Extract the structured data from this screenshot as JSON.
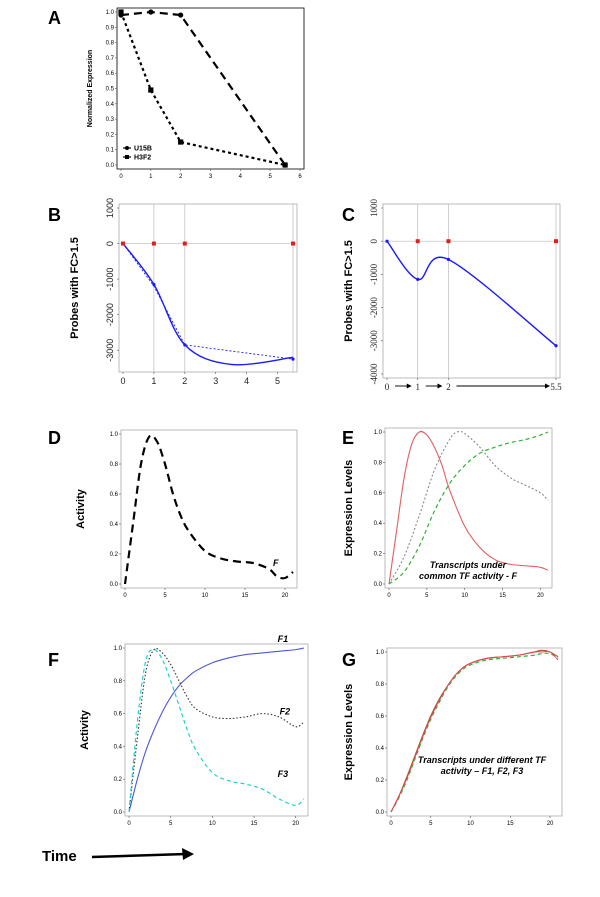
{
  "panels": {
    "A": {
      "letter": "A"
    },
    "B": {
      "letter": "B"
    },
    "C": {
      "letter": "C"
    },
    "D": {
      "letter": "D"
    },
    "E": {
      "letter": "E"
    },
    "F": {
      "letter": "F"
    },
    "G": {
      "letter": "G"
    }
  },
  "time_label": "Time",
  "colors": {
    "blue": "#1a1aff",
    "red": "#e02020",
    "cyan": "#20d0d0",
    "green": "#30b030",
    "gray": "#888888",
    "salmon": "#e06060",
    "pink": "#f04060"
  },
  "chart_data": [
    {
      "id": "A",
      "type": "line",
      "ylabel": "Normalized Expression",
      "xlabel": "",
      "xlim": [
        0,
        6
      ],
      "ylim": [
        0,
        1.0
      ],
      "xticks": [
        "0",
        "1",
        "2",
        "3",
        "4",
        "5",
        "6"
      ],
      "yticks": [
        "0.0",
        "0.1",
        "0.2",
        "0.3",
        "0.4",
        "0.5",
        "0.6",
        "0.7",
        "0.8",
        "0.9",
        "1.0"
      ],
      "legend_position": "bottom-left",
      "series": [
        {
          "name": "U15B",
          "marker": "circle",
          "style": "dashed",
          "x": [
            0,
            1,
            2,
            5.5
          ],
          "y": [
            0.98,
            1.0,
            0.98,
            0.0
          ]
        },
        {
          "name": "H3F2",
          "marker": "square",
          "style": "dotted",
          "x": [
            0,
            1,
            2,
            5.5
          ],
          "y": [
            1.0,
            0.49,
            0.15,
            0.0
          ]
        }
      ]
    },
    {
      "id": "B",
      "type": "line",
      "ylabel": "Probes with FC>1.5",
      "xlabel": "",
      "xlim": [
        0,
        5.5
      ],
      "ylim": [
        -3500,
        1000
      ],
      "xticks": [
        "0",
        "1",
        "2",
        "3",
        "4",
        "5"
      ],
      "yticks": [
        "1000",
        "0",
        "-1000",
        "-2000",
        "-3000"
      ],
      "series": [
        {
          "style": "smooth",
          "x": [
            0,
            1,
            2,
            3.5,
            5.5
          ],
          "y": [
            0,
            -1150,
            -2850,
            -3400,
            -3200
          ]
        },
        {
          "style": "dotted",
          "x": [
            0,
            1,
            2,
            5.5
          ],
          "y": [
            0,
            -1200,
            -2850,
            -3250
          ]
        },
        {
          "style": "red-markers",
          "x": [
            0,
            1,
            2,
            5.5
          ],
          "y": [
            0,
            0,
            0,
            0
          ]
        }
      ]
    },
    {
      "id": "C",
      "type": "line",
      "ylabel": "Probes with FC>1.5",
      "xlabel": "",
      "xlim": [
        0,
        5.5
      ],
      "ylim": [
        -4000,
        1000
      ],
      "xticks": [
        "0",
        "1",
        "2",
        "5.5"
      ],
      "yticks": [
        "1000",
        "0",
        "-1000",
        "-2000",
        "-3000",
        "-4000"
      ],
      "series": [
        {
          "style": "smooth",
          "x": [
            0,
            1,
            2,
            5.5
          ],
          "y": [
            0,
            -1150,
            -550,
            -3150
          ]
        },
        {
          "style": "red-markers",
          "x": [
            1,
            2,
            5.5
          ],
          "y": [
            0,
            0,
            0
          ]
        }
      ]
    },
    {
      "id": "D",
      "type": "line",
      "ylabel": "Activity",
      "xlabel": "",
      "xlim": [
        0,
        21
      ],
      "ylim": [
        0,
        1.0
      ],
      "xticks": [
        "0",
        "5",
        "10",
        "15",
        "20"
      ],
      "yticks": [
        "0.0",
        "0.2",
        "0.4",
        "0.6",
        "0.8",
        "1.0"
      ],
      "series": [
        {
          "name": "F",
          "style": "dashed",
          "x": [
            0,
            1,
            2,
            3,
            4,
            5,
            6,
            7,
            8,
            10,
            12,
            14,
            16,
            18,
            19,
            20,
            21
          ],
          "y": [
            0.0,
            0.4,
            0.8,
            0.98,
            0.95,
            0.8,
            0.6,
            0.45,
            0.35,
            0.22,
            0.17,
            0.15,
            0.14,
            0.1,
            0.05,
            0.04,
            0.08
          ]
        }
      ]
    },
    {
      "id": "E",
      "type": "line",
      "ylabel": "Expression Levels",
      "xlabel": "",
      "xlim": [
        0,
        21
      ],
      "ylim": [
        0,
        1.0
      ],
      "xticks": [
        "0",
        "5",
        "10",
        "15",
        "20"
      ],
      "yticks": [
        "0.0",
        "0.2",
        "0.4",
        "0.6",
        "0.8",
        "1.0"
      ],
      "annotation": "Transcripts under common TF activity - F",
      "series": [
        {
          "style": "solid-red",
          "x": [
            0,
            1,
            2,
            3,
            4,
            5,
            6,
            7,
            8,
            10,
            12,
            14,
            16,
            18,
            20,
            21
          ],
          "y": [
            0.0,
            0.35,
            0.7,
            0.92,
            1.0,
            0.98,
            0.9,
            0.78,
            0.62,
            0.38,
            0.24,
            0.16,
            0.13,
            0.12,
            0.11,
            0.09
          ]
        },
        {
          "style": "dotted-gray",
          "x": [
            0,
            2,
            4,
            6,
            8,
            9,
            10,
            12,
            14,
            16,
            18,
            20,
            21
          ],
          "y": [
            0.0,
            0.18,
            0.45,
            0.75,
            0.95,
            1.0,
            0.99,
            0.9,
            0.78,
            0.7,
            0.65,
            0.6,
            0.55
          ]
        },
        {
          "style": "dashed-green",
          "x": [
            0,
            2,
            4,
            6,
            8,
            10,
            12,
            14,
            16,
            18,
            20,
            21
          ],
          "y": [
            0.0,
            0.08,
            0.25,
            0.48,
            0.66,
            0.78,
            0.86,
            0.9,
            0.93,
            0.95,
            0.98,
            1.0
          ]
        }
      ]
    },
    {
      "id": "F",
      "type": "line",
      "ylabel": "Activity",
      "xlabel": "",
      "xlim": [
        0,
        21
      ],
      "ylim": [
        0,
        1.0
      ],
      "xticks": [
        "0",
        "5",
        "10",
        "15",
        "20"
      ],
      "yticks": [
        "0.0",
        "0.2",
        "0.4",
        "0.6",
        "0.8",
        "1.0"
      ],
      "series": [
        {
          "name": "F1",
          "style": "solid-blue",
          "x": [
            0,
            1,
            2,
            3,
            4,
            5,
            6,
            7,
            8,
            10,
            12,
            14,
            16,
            18,
            20,
            21
          ],
          "y": [
            0.0,
            0.2,
            0.37,
            0.5,
            0.61,
            0.7,
            0.77,
            0.82,
            0.86,
            0.91,
            0.94,
            0.96,
            0.97,
            0.98,
            0.99,
            1.0
          ]
        },
        {
          "name": "F2",
          "style": "dotted-black",
          "x": [
            0,
            1,
            2,
            3,
            4,
            5,
            6,
            7,
            8,
            10,
            12,
            14,
            16,
            18,
            20,
            21
          ],
          "y": [
            0.0,
            0.45,
            0.85,
            0.99,
            0.97,
            0.9,
            0.8,
            0.7,
            0.63,
            0.58,
            0.57,
            0.58,
            0.6,
            0.58,
            0.52,
            0.55
          ]
        },
        {
          "name": "F3",
          "style": "dashed-cyan",
          "x": [
            0,
            1,
            2,
            3,
            4,
            5,
            6,
            7,
            8,
            10,
            12,
            14,
            16,
            18,
            20,
            21
          ],
          "y": [
            0.0,
            0.55,
            0.92,
            0.99,
            0.93,
            0.8,
            0.65,
            0.5,
            0.38,
            0.24,
            0.19,
            0.17,
            0.14,
            0.08,
            0.04,
            0.08
          ]
        }
      ]
    },
    {
      "id": "G",
      "type": "line",
      "ylabel": "Expression Levels",
      "xlabel": "",
      "xlim": [
        0,
        21
      ],
      "ylim": [
        0,
        1.0
      ],
      "xticks": [
        "0",
        "5",
        "10",
        "15",
        "20"
      ],
      "yticks": [
        "0.0",
        "0.2",
        "0.4",
        "0.6",
        "0.8",
        "1.0"
      ],
      "annotation": "Transcripts under different TF activity – F1, F2, F3",
      "series": [
        {
          "style": "solid-brown",
          "x": [
            0,
            1,
            2,
            3,
            4,
            5,
            6,
            7,
            8,
            9,
            10,
            12,
            14,
            16,
            18,
            19,
            20,
            21
          ],
          "y": [
            0.0,
            0.1,
            0.22,
            0.35,
            0.48,
            0.6,
            0.7,
            0.78,
            0.85,
            0.9,
            0.93,
            0.96,
            0.97,
            0.98,
            1.0,
            1.01,
            1.0,
            0.97
          ]
        },
        {
          "style": "dashed-green",
          "x": [
            0,
            1,
            2,
            3,
            4,
            5,
            6,
            7,
            8,
            9,
            10,
            12,
            14,
            16,
            18,
            19,
            20,
            21
          ],
          "y": [
            0.0,
            0.09,
            0.2,
            0.33,
            0.46,
            0.58,
            0.68,
            0.77,
            0.84,
            0.89,
            0.92,
            0.95,
            0.96,
            0.97,
            0.98,
            0.99,
            0.99,
            0.96
          ]
        },
        {
          "style": "solid-pink",
          "x": [
            0,
            1,
            2,
            3,
            4,
            5,
            6,
            7,
            8,
            9,
            10,
            12,
            14,
            16,
            18,
            19,
            20,
            21
          ],
          "y": [
            0.0,
            0.1,
            0.21,
            0.34,
            0.47,
            0.59,
            0.69,
            0.78,
            0.85,
            0.9,
            0.93,
            0.96,
            0.97,
            0.98,
            1.0,
            1.0,
            1.0,
            0.95
          ]
        }
      ]
    }
  ]
}
